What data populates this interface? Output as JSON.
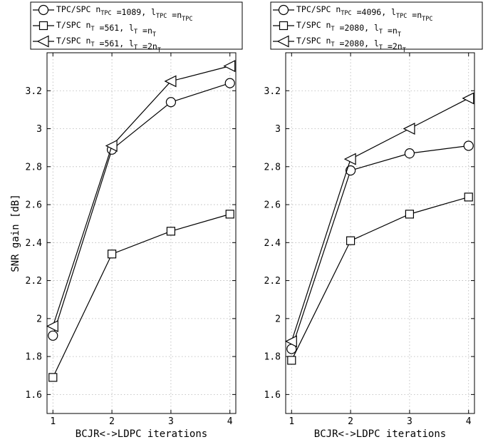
{
  "chart_data": [
    {
      "type": "line",
      "xlabel": "BCJR<->LDPC iterations",
      "ylabel": "SNR gain [dB]",
      "x": [
        1,
        2,
        3,
        4
      ],
      "xticks": [
        "1",
        "2",
        "3",
        "4"
      ],
      "xlim": [
        0.9,
        4.1
      ],
      "ylim": [
        1.5,
        3.4
      ],
      "yticks": [
        "1.6",
        "1.8",
        "2",
        "2.2",
        "2.4",
        "2.6",
        "2.8",
        "3",
        "3.2"
      ],
      "grid": true,
      "legend_position": "top",
      "series": [
        {
          "name": "TPC/SPC n_TPC =1089, l_TPC =n_TPC",
          "marker": "circle",
          "legend": [
            {
              "t": "TPC/SPC n"
            },
            {
              "t": "TPC",
              "sub": true
            },
            {
              "t": " =1089, l"
            },
            {
              "t": "TPC",
              "sub": true
            },
            {
              "t": " =n"
            },
            {
              "t": "TPC",
              "sub": true
            }
          ],
          "values": [
            1.91,
            2.89,
            3.14,
            3.24
          ]
        },
        {
          "name": "T/SPC n_T =561, l_T =n_T",
          "marker": "square",
          "legend": [
            {
              "t": "T/SPC   n"
            },
            {
              "t": "T",
              "sub": true
            },
            {
              "t": " =561, l"
            },
            {
              "t": "T",
              "sub": true
            },
            {
              "t": " =n"
            },
            {
              "t": "T",
              "sub": true
            }
          ],
          "values": [
            1.69,
            2.34,
            2.46,
            2.55
          ]
        },
        {
          "name": "T/SPC n_T =561, l_T =2n_T",
          "marker": "triangle-left",
          "legend": [
            {
              "t": "T/SPC   n"
            },
            {
              "t": "T",
              "sub": true
            },
            {
              "t": " =561, l"
            },
            {
              "t": "T",
              "sub": true
            },
            {
              "t": " =2n"
            },
            {
              "t": "T",
              "sub": true
            }
          ],
          "values": [
            1.96,
            2.91,
            3.25,
            3.33
          ]
        }
      ]
    },
    {
      "type": "line",
      "xlabel": "BCJR<->LDPC iterations",
      "ylabel": "",
      "x": [
        1,
        2,
        3,
        4
      ],
      "xticks": [
        "1",
        "2",
        "3",
        "4"
      ],
      "xlim": [
        0.9,
        4.1
      ],
      "ylim": [
        1.5,
        3.4
      ],
      "yticks": [
        "1.6",
        "1.8",
        "2",
        "2.2",
        "2.4",
        "2.6",
        "2.8",
        "3",
        "3.2"
      ],
      "grid": true,
      "legend_position": "top",
      "series": [
        {
          "name": "TPC/SPC n_TPC =4096, l_TPC =n_TPC",
          "marker": "circle",
          "legend": [
            {
              "t": "TPC/SPC n"
            },
            {
              "t": "TPC",
              "sub": true
            },
            {
              "t": " =4096, l"
            },
            {
              "t": "TPC",
              "sub": true
            },
            {
              "t": " =n"
            },
            {
              "t": "TPC",
              "sub": true
            }
          ],
          "values": [
            1.84,
            2.78,
            2.87,
            2.91
          ]
        },
        {
          "name": "T/SPC n_T =2080, l_T =n_T",
          "marker": "square",
          "legend": [
            {
              "t": "T/SPC   n"
            },
            {
              "t": "T",
              "sub": true
            },
            {
              "t": " =2080, l"
            },
            {
              "t": "T",
              "sub": true
            },
            {
              "t": " =n"
            },
            {
              "t": "T",
              "sub": true
            }
          ],
          "values": [
            1.78,
            2.41,
            2.55,
            2.64
          ]
        },
        {
          "name": "T/SPC n_T =2080, l_T =2n_T",
          "marker": "triangle-left",
          "legend": [
            {
              "t": "T/SPC   n"
            },
            {
              "t": "T",
              "sub": true
            },
            {
              "t": " =2080, l"
            },
            {
              "t": "T",
              "sub": true
            },
            {
              "t": " =2n"
            },
            {
              "t": "T",
              "sub": true
            }
          ],
          "values": [
            1.88,
            2.84,
            3.0,
            3.16
          ]
        }
      ]
    }
  ]
}
